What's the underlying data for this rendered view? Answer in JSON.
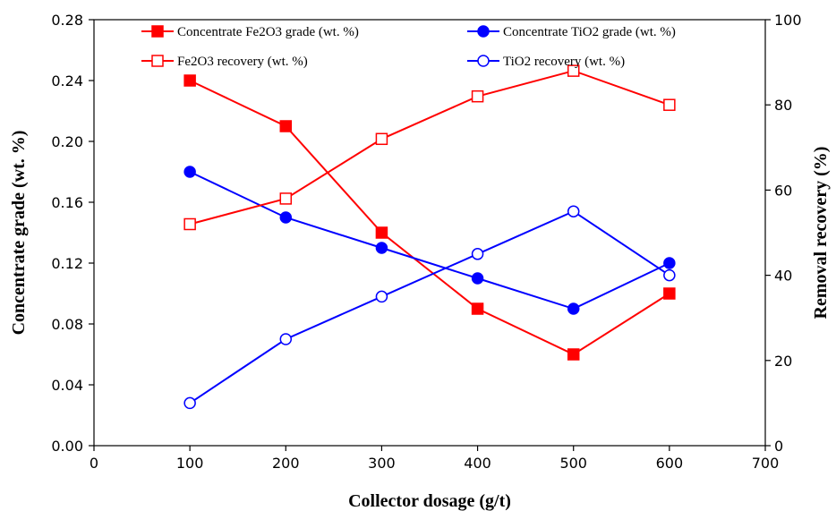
{
  "chart_data": {
    "type": "line",
    "title": "",
    "xlabel": "Collector dosage (g/t)",
    "ylabel_left": "Concentrate grade (wt. %)",
    "ylabel_right": "Removal recovery (%)",
    "xlim": [
      0,
      700
    ],
    "ylim_left": [
      0,
      0.28
    ],
    "ylim_right": [
      0,
      100
    ],
    "x_ticks": [
      "0",
      "100",
      "200",
      "300",
      "400",
      "500",
      "600",
      "700"
    ],
    "y_left_ticks": [
      "0.00",
      "0.04",
      "0.08",
      "0.12",
      "0.16",
      "0.20",
      "0.24",
      "0.28"
    ],
    "y_right_ticks": [
      "0",
      "20",
      "40",
      "60",
      "80",
      "100"
    ],
    "grid": false,
    "legend_position": "top",
    "x": [
      100,
      200,
      300,
      400,
      500,
      600
    ],
    "series": [
      {
        "name": "Concentrate Fe2O3 grade (wt. %)",
        "axis": "left",
        "color": "#ff0000",
        "marker": "filled-square",
        "values": [
          0.24,
          0.21,
          0.14,
          0.09,
          0.06,
          0.1
        ]
      },
      {
        "name": "Concentrate TiO2 grade (wt. %)",
        "axis": "left",
        "color": "#0000ff",
        "marker": "filled-circle",
        "values": [
          0.18,
          0.15,
          0.13,
          0.11,
          0.09,
          0.12
        ]
      },
      {
        "name": "Fe2O3 recovery (wt. %)",
        "axis": "right",
        "color": "#ff0000",
        "marker": "open-square",
        "values": [
          52,
          58,
          72,
          82,
          88,
          80
        ]
      },
      {
        "name": "TiO2 recovery (wt. %)",
        "axis": "right",
        "color": "#0000ff",
        "marker": "open-circle",
        "values": [
          10,
          25,
          35,
          45,
          55,
          40
        ]
      }
    ]
  }
}
